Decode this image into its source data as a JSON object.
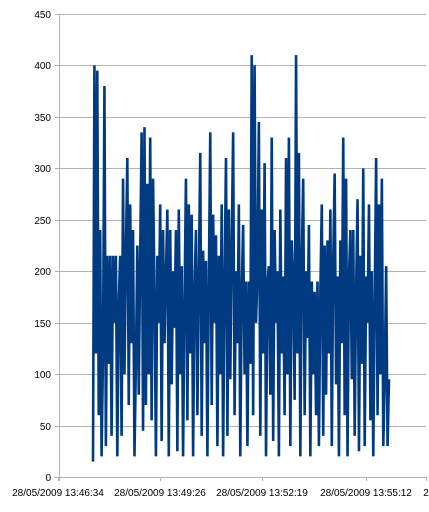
{
  "chart_data": {
    "type": "line",
    "title": "",
    "xlabel": "",
    "ylabel": "",
    "ylim": [
      0,
      450
    ],
    "yticks": [
      0,
      50,
      100,
      150,
      200,
      250,
      300,
      350,
      400,
      450
    ],
    "ytick_labels": [
      "0",
      "50",
      "100",
      "150",
      "200",
      "250",
      "300",
      "350",
      "400",
      "450"
    ],
    "xtick_labels": [
      "28/05/2009 13:46:34",
      "28/05/2009 13:49:26",
      "28/05/2009 13:52:19",
      "28/05/2009 13:55:12",
      "2"
    ],
    "grid": "horizontal",
    "legend": "none",
    "series_color": "#003a80",
    "grid_color": "#b3b3b3",
    "axis_color": "#b3b3b3",
    "series": [
      {
        "x_start": "28/05/2009 13:47:07",
        "x_end": "28/05/2009 13:56:17",
        "values": [
          15,
          400,
          120,
          395,
          60,
          240,
          20,
          120,
          380,
          30,
          215,
          110,
          215,
          40,
          215,
          150,
          215,
          20,
          170,
          215,
          40,
          290,
          100,
          215,
          310,
          70,
          265,
          130,
          240,
          20,
          110,
          225,
          80,
          215,
          335,
          45,
          340,
          70,
          285,
          100,
          330,
          55,
          290,
          180,
          20,
          215,
          150,
          265,
          35,
          240,
          130,
          195,
          260,
          20,
          240,
          90,
          200,
          145,
          240,
          25,
          260,
          100,
          205,
          20,
          170,
          290,
          55,
          265,
          120,
          255,
          20,
          180,
          240,
          60,
          195,
          315,
          40,
          220,
          130,
          210,
          20,
          190,
          335,
          70,
          255,
          150,
          235,
          30,
          215,
          100,
          265,
          20,
          190,
          310,
          40,
          260,
          95,
          225,
          335,
          60,
          200,
          130,
          265,
          20,
          180,
          245,
          100,
          190,
          30,
          190,
          110,
          410,
          60,
          400,
          150,
          195,
          345,
          40,
          260,
          120,
          305,
          20,
          190,
          205,
          80,
          330,
          35,
          240,
          150,
          200,
          20,
          260,
          120,
          195,
          60,
          310,
          100,
          330,
          30,
          230,
          190,
          75,
          410,
          120,
          315,
          20,
          210,
          290,
          60,
          200,
          135,
          245,
          20,
          190,
          100,
          180,
          60,
          190,
          30,
          180,
          265,
          40,
          225,
          80,
          230,
          120,
          260,
          30,
          210,
          295,
          90,
          195,
          20,
          230,
          130,
          330,
          60,
          290,
          20,
          195,
          240,
          95,
          240,
          40,
          180,
          270,
          25,
          215,
          110,
          300,
          30,
          195,
          150,
          265,
          55,
          200,
          20,
          170,
          310,
          60,
          265,
          100,
          290,
          30,
          95,
          205,
          30,
          95
        ]
      }
    ]
  }
}
